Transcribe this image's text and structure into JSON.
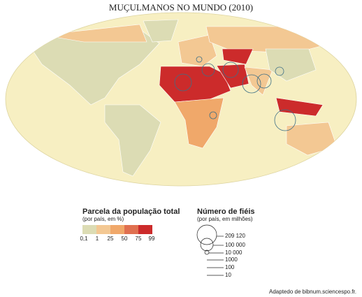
{
  "title": "MUÇULMANOS NO MUNDO (2010)",
  "legend_share": {
    "title": "Parcela da população total",
    "subtitle": "(por país, em %)",
    "labels": [
      "0,1",
      "1",
      "25",
      "50",
      "75",
      "99"
    ]
  },
  "legend_count": {
    "title": "Número de fiéis",
    "subtitle": "(por país, em milhões)",
    "labels": [
      "209 120",
      "100 000",
      "10 000",
      "1000",
      "100",
      "10"
    ]
  },
  "source": "Adaptedo de bibnum.sciencespo.fr."
}
